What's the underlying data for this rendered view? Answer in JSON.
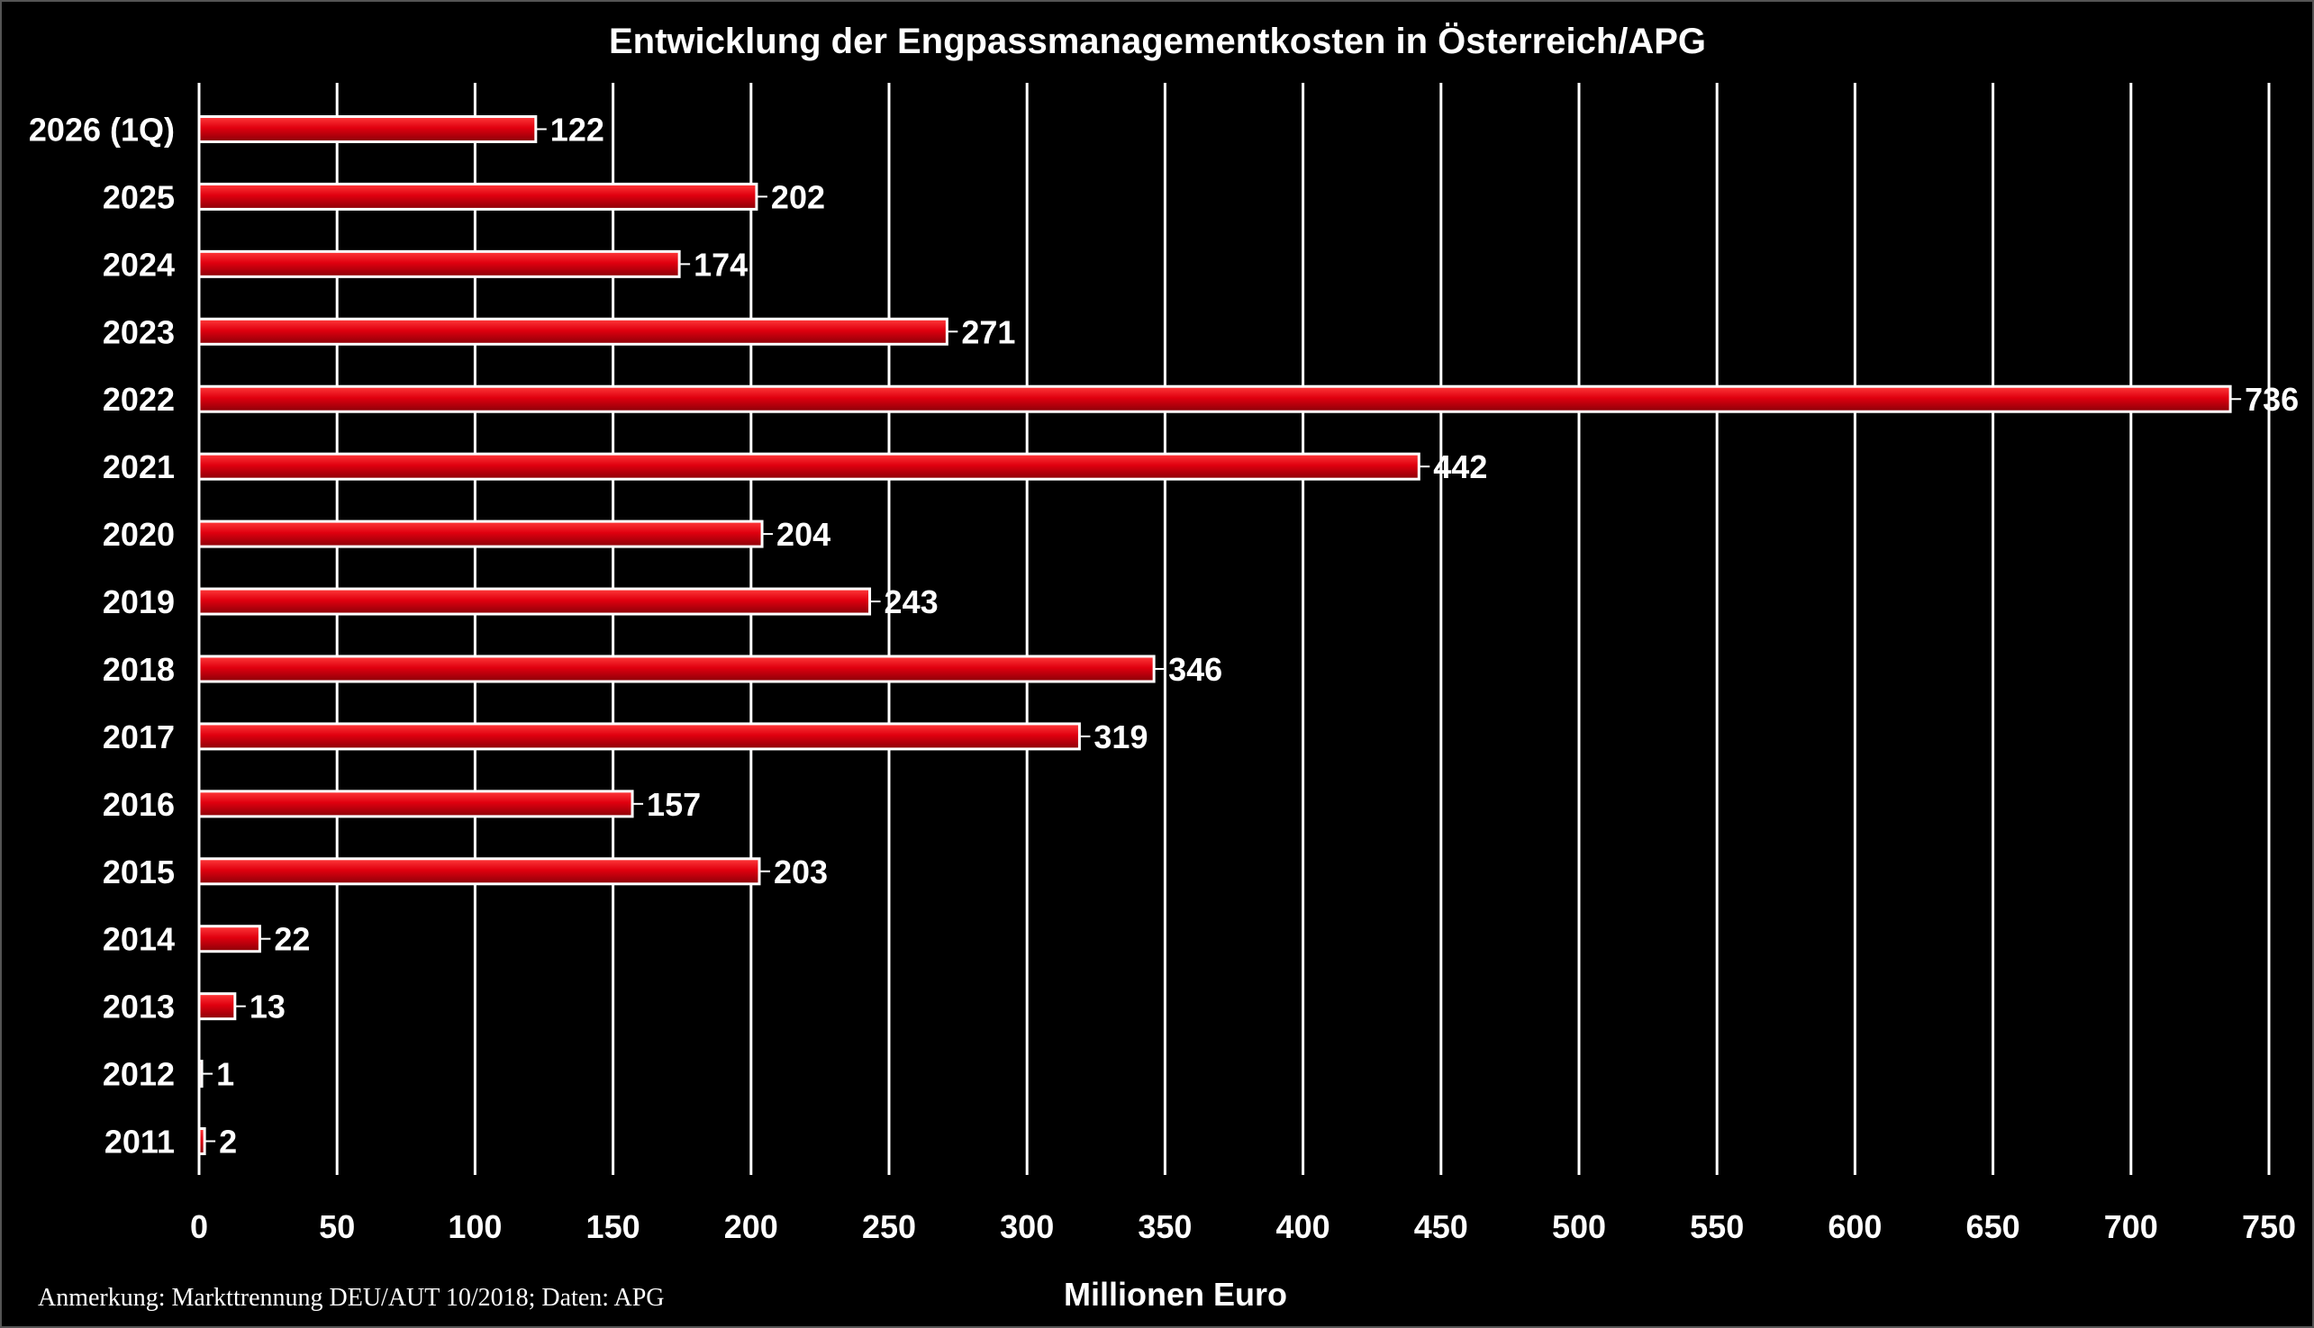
{
  "chart_data": {
    "type": "bar",
    "orientation": "horizontal",
    "title": "Entwicklung der Engpassmanagementkosten in Österreich/APG",
    "xlabel": "Millionen Euro",
    "ylabel": "",
    "xlim": [
      0,
      750
    ],
    "x_ticks": [
      0,
      50,
      100,
      150,
      200,
      250,
      300,
      350,
      400,
      450,
      500,
      550,
      600,
      650,
      700,
      750
    ],
    "grid": "vertical",
    "legend": "none",
    "categories": [
      "2026 (1Q)",
      "2025",
      "2024",
      "2023",
      "2022",
      "2021",
      "2020",
      "2019",
      "2018",
      "2017",
      "2016",
      "2015",
      "2014",
      "2013",
      "2012",
      "2011"
    ],
    "values": [
      122,
      202,
      174,
      271,
      736,
      442,
      204,
      243,
      346,
      319,
      157,
      203,
      22,
      13,
      1,
      2
    ],
    "value_labels": [
      "122",
      "202",
      "174",
      "271",
      "736",
      "442",
      "204",
      "243",
      "346",
      "319",
      "157",
      "203",
      "22",
      "13",
      "1",
      "2"
    ],
    "bar_color": "#e0000f",
    "bar_outline": "#ffffff",
    "background": "#000000",
    "note": "Anmerkung: Markttrennung DEU/AUT 10/2018; Daten: APG"
  }
}
